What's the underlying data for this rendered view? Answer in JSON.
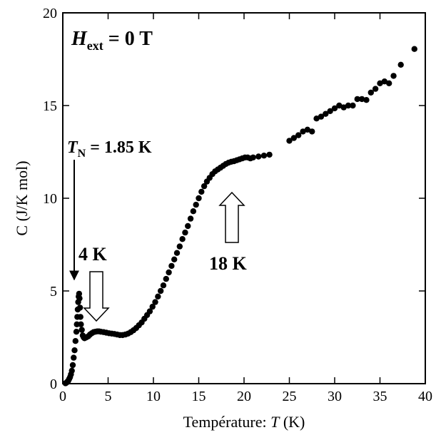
{
  "chart_data": {
    "type": "scatter",
    "title": "",
    "xlabel": "Température: T (K)",
    "xlabel_prefix": "Température: ",
    "xlabel_var": "T",
    "xlabel_unit": " (K)",
    "ylabel": "C (J/K mol)",
    "xlim": [
      0,
      40
    ],
    "ylim": [
      0,
      20
    ],
    "x_ticks": [
      0,
      5,
      10,
      15,
      20,
      25,
      30,
      35,
      40
    ],
    "y_ticks": [
      0,
      5,
      10,
      15,
      20
    ],
    "grid": false,
    "marker_color": "#000000",
    "annotations": {
      "field": {
        "var": "H",
        "sub": "ext",
        "rest": " = 0 T"
      },
      "tn": {
        "var": "T",
        "sub": "N",
        "rest": " = 1.85 K"
      },
      "label_4k": "4 K",
      "label_18k": "18 K"
    },
    "points": [
      [
        0.3,
        0.02
      ],
      [
        0.4,
        0.05
      ],
      [
        0.5,
        0.1
      ],
      [
        0.6,
        0.15
      ],
      [
        0.7,
        0.25
      ],
      [
        0.8,
        0.35
      ],
      [
        0.9,
        0.5
      ],
      [
        1.0,
        0.7
      ],
      [
        1.1,
        1.0
      ],
      [
        1.2,
        1.4
      ],
      [
        1.3,
        1.8
      ],
      [
        1.4,
        2.3
      ],
      [
        1.5,
        2.8
      ],
      [
        1.55,
        3.2
      ],
      [
        1.6,
        3.6
      ],
      [
        1.65,
        4.0
      ],
      [
        1.7,
        4.4
      ],
      [
        1.75,
        4.7
      ],
      [
        1.8,
        4.85
      ],
      [
        1.85,
        4.6
      ],
      [
        1.9,
        4.1
      ],
      [
        1.95,
        3.6
      ],
      [
        2.0,
        3.2
      ],
      [
        2.1,
        2.9
      ],
      [
        2.2,
        2.6
      ],
      [
        2.3,
        2.5
      ],
      [
        2.4,
        2.45
      ],
      [
        2.6,
        2.5
      ],
      [
        2.8,
        2.55
      ],
      [
        3.0,
        2.65
      ],
      [
        3.2,
        2.72
      ],
      [
        3.4,
        2.78
      ],
      [
        3.6,
        2.8
      ],
      [
        3.8,
        2.82
      ],
      [
        4.0,
        2.82
      ],
      [
        4.2,
        2.8
      ],
      [
        4.5,
        2.78
      ],
      [
        4.8,
        2.75
      ],
      [
        5.1,
        2.72
      ],
      [
        5.4,
        2.7
      ],
      [
        5.7,
        2.68
      ],
      [
        6.0,
        2.65
      ],
      [
        6.3,
        2.62
      ],
      [
        6.6,
        2.62
      ],
      [
        6.9,
        2.65
      ],
      [
        7.2,
        2.7
      ],
      [
        7.5,
        2.78
      ],
      [
        7.8,
        2.88
      ],
      [
        8.1,
        3.0
      ],
      [
        8.4,
        3.15
      ],
      [
        8.7,
        3.3
      ],
      [
        9.0,
        3.5
      ],
      [
        9.3,
        3.7
      ],
      [
        9.6,
        3.9
      ],
      [
        9.9,
        4.15
      ],
      [
        10.2,
        4.4
      ],
      [
        10.5,
        4.7
      ],
      [
        10.8,
        5.0
      ],
      [
        11.1,
        5.3
      ],
      [
        11.4,
        5.65
      ],
      [
        11.7,
        6.0
      ],
      [
        12.0,
        6.35
      ],
      [
        12.3,
        6.7
      ],
      [
        12.6,
        7.05
      ],
      [
        12.9,
        7.4
      ],
      [
        13.2,
        7.8
      ],
      [
        13.5,
        8.15
      ],
      [
        13.8,
        8.5
      ],
      [
        14.1,
        8.9
      ],
      [
        14.4,
        9.3
      ],
      [
        14.7,
        9.65
      ],
      [
        15.0,
        10.0
      ],
      [
        15.3,
        10.35
      ],
      [
        15.6,
        10.65
      ],
      [
        15.9,
        10.9
      ],
      [
        16.2,
        11.1
      ],
      [
        16.5,
        11.3
      ],
      [
        16.8,
        11.45
      ],
      [
        17.1,
        11.55
      ],
      [
        17.4,
        11.65
      ],
      [
        17.7,
        11.75
      ],
      [
        18.0,
        11.85
      ],
      [
        18.3,
        11.92
      ],
      [
        18.6,
        11.97
      ],
      [
        18.9,
        12.0
      ],
      [
        19.2,
        12.05
      ],
      [
        19.5,
        12.1
      ],
      [
        19.8,
        12.15
      ],
      [
        20.1,
        12.2
      ],
      [
        20.4,
        12.2
      ],
      [
        20.7,
        12.15
      ],
      [
        21.0,
        12.2
      ],
      [
        21.6,
        12.25
      ],
      [
        22.2,
        12.3
      ],
      [
        22.8,
        12.35
      ],
      [
        25.0,
        13.1
      ],
      [
        25.5,
        13.25
      ],
      [
        26.0,
        13.4
      ],
      [
        26.5,
        13.6
      ],
      [
        27.0,
        13.7
      ],
      [
        27.5,
        13.6
      ],
      [
        28.0,
        14.3
      ],
      [
        28.5,
        14.4
      ],
      [
        29.0,
        14.55
      ],
      [
        29.5,
        14.7
      ],
      [
        30.0,
        14.85
      ],
      [
        30.5,
        15.0
      ],
      [
        31.0,
        14.9
      ],
      [
        31.5,
        15.0
      ],
      [
        32.0,
        15.0
      ],
      [
        32.5,
        15.35
      ],
      [
        33.0,
        15.35
      ],
      [
        33.5,
        15.3
      ],
      [
        34.0,
        15.7
      ],
      [
        34.5,
        15.9
      ],
      [
        35.0,
        16.2
      ],
      [
        35.5,
        16.3
      ],
      [
        36.0,
        16.2
      ],
      [
        36.5,
        16.6
      ],
      [
        37.3,
        17.2
      ],
      [
        38.8,
        18.05
      ]
    ]
  }
}
